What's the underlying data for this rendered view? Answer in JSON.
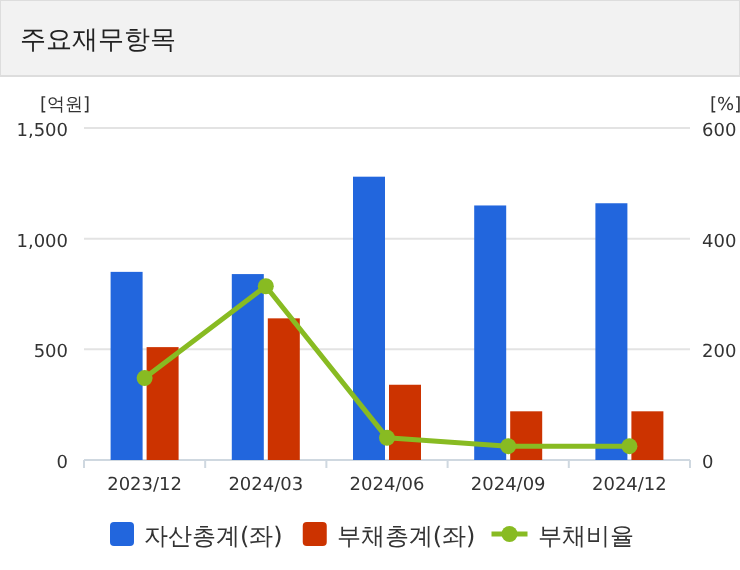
{
  "chart_data": {
    "type": "bar",
    "title": "주요재무항목",
    "categories": [
      "2023/12",
      "2024/03",
      "2024/06",
      "2024/09",
      "2024/12"
    ],
    "series": [
      {
        "name": "자산총계(좌)",
        "color": "#2266dd",
        "values": [
          850,
          840,
          1280,
          1150,
          1160
        ]
      },
      {
        "name": "부채총계(좌)",
        "color": "#cc3300",
        "values": [
          510,
          640,
          340,
          220,
          220
        ]
      },
      {
        "name": "부채비율",
        "type": "line",
        "axis": "y2",
        "color": "#88bb22",
        "marker": "circle",
        "values": [
          148,
          314,
          40,
          25,
          25
        ]
      }
    ],
    "ylabel": "[억원]",
    "y2label": "[%]",
    "ylim": [
      0,
      1500
    ],
    "yticks": [
      0,
      500,
      {
        "value": 1000,
        "label": "1,000"
      },
      {
        "value": 1500,
        "label": "1,500"
      }
    ],
    "y2lim": [
      0,
      600
    ],
    "y2ticks": [
      0,
      200,
      400,
      600
    ],
    "grid": "y",
    "legend": "bottom"
  }
}
